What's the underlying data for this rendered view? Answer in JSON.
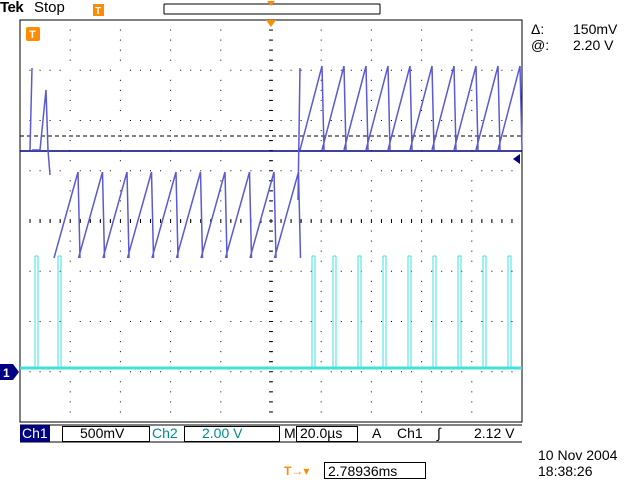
{
  "header": {
    "brand": "Tek",
    "acquisition_state": "Stop"
  },
  "cursor_readout": {
    "delta_symbol": "Δ:",
    "delta_value": "150mV",
    "at_symbol": "@:",
    "at_value": "2.20 V"
  },
  "markers": {
    "trigger_label": "T",
    "ch1_ground_label": "1"
  },
  "status_bar": {
    "ch1_label": "Ch1",
    "ch1_scale": "500mV",
    "ch2_label": "Ch2",
    "ch2_scale": "2.00 V",
    "timebase_prefix": "M",
    "timebase_value": "20.0µs",
    "trigger_mode": "A",
    "trigger_source": "Ch1",
    "trigger_slope": "∫",
    "trigger_level": "2.12 V"
  },
  "trigger_position": {
    "icon_label": "T→▾",
    "value": "2.78936ms"
  },
  "date": "10 Nov 2004",
  "time": "18:38:26",
  "colors": {
    "ch1_trace": "#5a5ad2",
    "ch2_trace": "#40e0e0",
    "marker_orange": "#ff8c00",
    "ch1_tag_bg": "#000080",
    "graticule": "#000000"
  }
}
